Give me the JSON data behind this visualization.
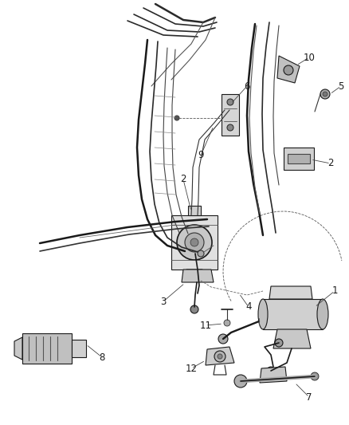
{
  "background_color": "#ffffff",
  "figure_width": 4.38,
  "figure_height": 5.33,
  "dpi": 100,
  "line_color": "#1a1a1a",
  "mid_color": "#444444",
  "light_color": "#888888",
  "fill_light": "#d8d8d8",
  "fill_mid": "#b8b8b8",
  "label_fontsize": 8.5
}
